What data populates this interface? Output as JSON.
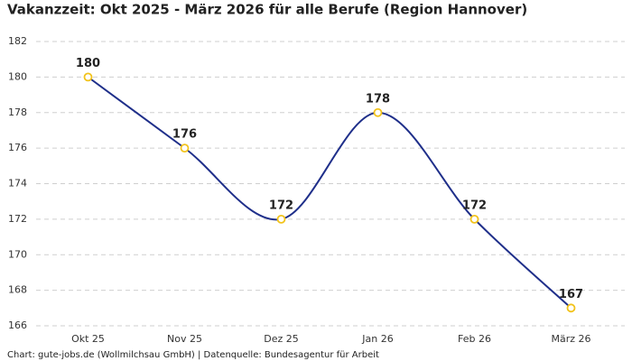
{
  "chart_data": {
    "type": "line",
    "title": "Vakanzzeit: Okt 2025 - März 2026 für alle Berufe (Region Hannover)",
    "categories": [
      "Okt 25",
      "Nov 25",
      "Dez 25",
      "Jan 26",
      "Feb 26",
      "März 26"
    ],
    "values": [
      180,
      176,
      172,
      178,
      172,
      167
    ],
    "color": "#1f2f8a",
    "marker_color": "#f2c31b",
    "ylim": [
      166,
      182
    ],
    "yticks": [
      166,
      168,
      170,
      172,
      174,
      176,
      178,
      180,
      182
    ],
    "grid": true,
    "source": "Chart: gute-jobs.de (Wollmilchsau GmbH) | Datenquelle: Bundesagentur für Arbeit"
  }
}
